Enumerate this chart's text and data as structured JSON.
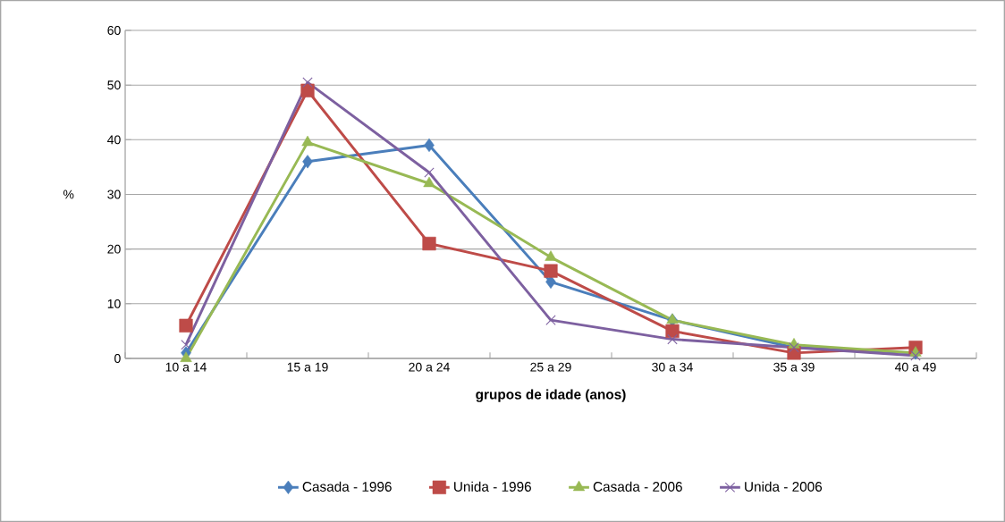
{
  "chart_data": {
    "type": "line",
    "xlabel": "grupos de idade (anos)",
    "ylabel": "%",
    "categories": [
      "10 a 14",
      "15 a 19",
      "20 a 24",
      "25 a 29",
      "30 a 34",
      "35 a 39",
      "40 a 49"
    ],
    "series": [
      {
        "name": "Casada - 1996",
        "color": "#4a7ebb",
        "marker": "diamond",
        "values": [
          1,
          36,
          39,
          14,
          7,
          2,
          1
        ]
      },
      {
        "name": "Unida - 1996",
        "color": "#be4b48",
        "marker": "square",
        "values": [
          6,
          49,
          21,
          16,
          5,
          1,
          2
        ]
      },
      {
        "name": "Casada - 2006",
        "color": "#98b954",
        "marker": "triangle",
        "values": [
          0,
          39.5,
          32,
          18.5,
          7,
          2.5,
          1
        ]
      },
      {
        "name": "Unida - 2006",
        "color": "#7d60a0",
        "marker": "cross",
        "values": [
          2.5,
          50.5,
          34,
          7,
          3.5,
          2,
          0.5
        ]
      }
    ],
    "ylim": [
      0,
      60
    ],
    "yticks": [
      0,
      10,
      20,
      30,
      40,
      50,
      60
    ],
    "grid": "y",
    "legend": "bottom",
    "line_style": "solid"
  }
}
